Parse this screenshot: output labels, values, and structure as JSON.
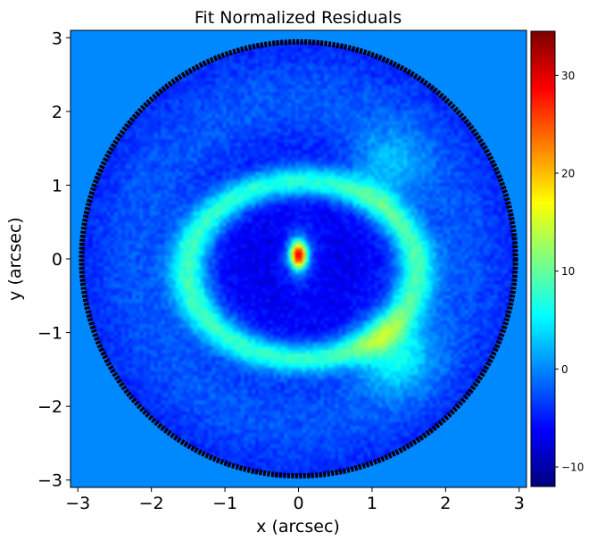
{
  "chart_data": {
    "type": "heatmap",
    "title": "Fit Normalized Residuals",
    "xlabel": "x (arcsec)",
    "ylabel": "y (arcsec)",
    "xlim": [
      -3.1,
      3.1
    ],
    "ylim": [
      -3.1,
      3.1
    ],
    "xticks": [
      -3,
      -2,
      -1,
      0,
      1,
      2,
      3
    ],
    "yticks": [
      -3,
      -2,
      -1,
      0,
      1,
      2,
      3
    ],
    "xtick_labels": [
      "−3",
      "−2",
      "−1",
      "0",
      "1",
      "2",
      "3"
    ],
    "ytick_labels": [
      "−3",
      "−2",
      "−1",
      "0",
      "1",
      "2",
      "3"
    ],
    "colormap": "jet",
    "colorbar": {
      "min": -12,
      "max": 34.5,
      "ticks": [
        -10,
        0,
        10,
        20,
        30
      ],
      "tick_labels": [
        "−10",
        "0",
        "10",
        "20",
        "30"
      ]
    },
    "background_value": 0,
    "mask_radius_arcsec": 2.95,
    "mask_border_color": "#000000",
    "features": [
      {
        "kind": "central-peak",
        "x": 0.0,
        "y": 0.05,
        "peak": 34,
        "sigma_x": 0.08,
        "sigma_y": 0.13
      },
      {
        "kind": "arc-ring",
        "x0": 0.05,
        "y0": -0.15,
        "a": 1.55,
        "b": 1.2,
        "peak": 13
      },
      {
        "kind": "arc-brightening",
        "x": 1.3,
        "y": -1.3,
        "peak": 18
      },
      {
        "kind": "arc-brightening",
        "x": 1.2,
        "y": 1.25,
        "peak": 15
      },
      {
        "kind": "arc-brightening",
        "x": -1.3,
        "y": 1.8,
        "peak": 9
      }
    ]
  }
}
